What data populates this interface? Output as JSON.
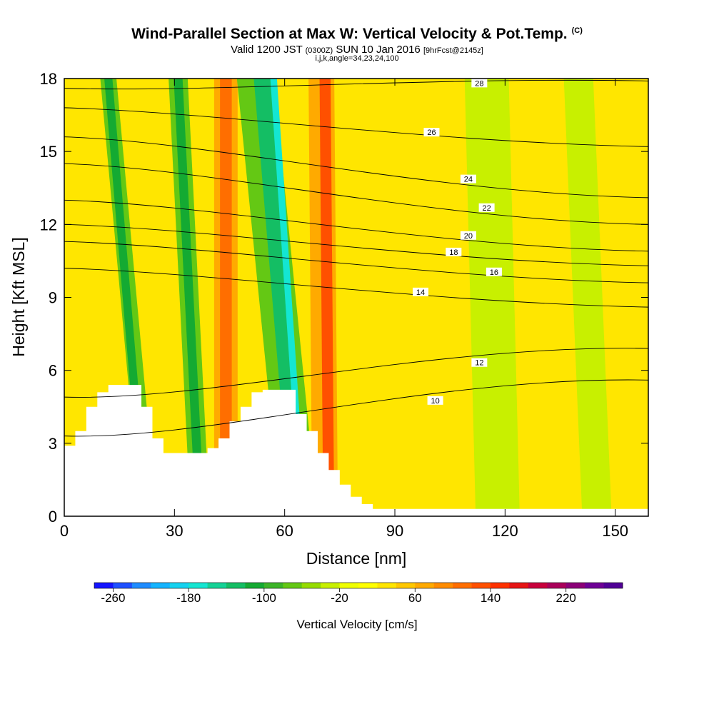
{
  "title": "Wind-Parallel Section at Max W: Vertical Velocity & Pot.Temp.",
  "copyright_mark": "(C)",
  "subtitle_main": "Valid 1200 JST",
  "subtitle_utc": "(0300Z)",
  "subtitle_date": "SUN 10 Jan 2016",
  "subtitle_fcst": "[9hrFcst@2145z]",
  "subsubtitle": "i,j,k,angle=34,23,24,100",
  "chart_data": {
    "type": "heatmap",
    "xlabel": "Distance [nm]",
    "ylabel": "Height [Kft MSL]",
    "xlim": [
      0,
      159
    ],
    "ylim": [
      0,
      18
    ],
    "xticks": [
      0,
      30,
      60,
      90,
      120,
      150
    ],
    "yticks": [
      0,
      3,
      6,
      9,
      12,
      15,
      18
    ],
    "colorbar": {
      "label": "Vertical Velocity [cm/s]",
      "tick_labels": [
        "-260",
        "-180",
        "-100",
        "-20",
        "60",
        "140",
        "220"
      ],
      "colors": [
        "#1414ff",
        "#1e50ff",
        "#1e8cff",
        "#14b4ff",
        "#14d2f0",
        "#14e6d2",
        "#14d296",
        "#14be64",
        "#14aa32",
        "#3cb428",
        "#64c814",
        "#96dc00",
        "#c8f000",
        "#f0ff00",
        "#ffff00",
        "#ffe600",
        "#ffc800",
        "#ffaa00",
        "#ff8c00",
        "#ff6e00",
        "#ff5000",
        "#ff3200",
        "#e61414",
        "#c8003c",
        "#aa005a",
        "#8c0078",
        "#6e0096",
        "#500096"
      ]
    },
    "streaks": [
      {
        "value": -70,
        "x_bottom": 23,
        "x_top": 12,
        "half_width": 2.2
      },
      {
        "value": -110,
        "x_bottom": 22,
        "x_top": 12,
        "half_width": 1.1
      },
      {
        "value": -70,
        "x_bottom": 37,
        "x_top": 31,
        "half_width": 2.6
      },
      {
        "value": -110,
        "x_bottom": 37,
        "x_top": 31,
        "half_width": 1.2
      },
      {
        "value": 60,
        "x_bottom": 44,
        "x_top": 44,
        "half_width": 3.2
      },
      {
        "value": 100,
        "x_bottom": 44,
        "x_top": 44,
        "half_width": 1.6
      },
      {
        "value": -70,
        "x_bottom": 64,
        "x_top": 52,
        "half_width": 5
      },
      {
        "value": -130,
        "x_bottom": 64,
        "x_top": 54,
        "half_width": 2.4
      },
      {
        "value": -180,
        "x_bottom": 65,
        "x_top": 57,
        "half_width": 0.9
      },
      {
        "value": 70,
        "x_bottom": 71,
        "x_top": 70,
        "half_width": 3.5
      },
      {
        "value": 120,
        "x_bottom": 72,
        "x_top": 71,
        "half_width": 1.5
      },
      {
        "value": -40,
        "x_bottom": 118,
        "x_top": 115,
        "half_width": 6
      },
      {
        "value": -30,
        "x_bottom": 145,
        "x_top": 140,
        "half_width": 4
      }
    ],
    "theta_contours": [
      {
        "value": 10,
        "height_left": 3.3,
        "height_right": 5.6,
        "label_x": 101
      },
      {
        "value": 12,
        "height_left": 4.9,
        "height_right": 6.9,
        "label_x": 113
      },
      {
        "value": 14,
        "height_left": 10.2,
        "height_right": 8.6,
        "label_x": 97
      },
      {
        "value": 16,
        "height_left": 11.3,
        "height_right": 9.6,
        "label_x": 117
      },
      {
        "value": 18,
        "height_left": 12.0,
        "height_right": 10.3,
        "label_x": 106
      },
      {
        "value": 20,
        "height_left": 13.0,
        "height_right": 10.9,
        "label_x": 110
      },
      {
        "value": 22,
        "height_left": 14.5,
        "height_right": 12.0,
        "label_x": 115
      },
      {
        "value": 24,
        "height_left": 15.6,
        "height_right": 13.1,
        "label_x": 110
      },
      {
        "value": 26,
        "height_left": 16.8,
        "height_right": 15.2,
        "label_x": 100
      },
      {
        "value": 28,
        "height_left": 17.6,
        "height_right": 17.9,
        "label_x": 113
      }
    ],
    "terrain_nm": [
      [
        0,
        2.9
      ],
      [
        3,
        3.5
      ],
      [
        6,
        4.5
      ],
      [
        9,
        5.1
      ],
      [
        12,
        5.4
      ],
      [
        21,
        4.5
      ],
      [
        24,
        3.2
      ],
      [
        27,
        2.6
      ],
      [
        39,
        2.8
      ],
      [
        42,
        3.2
      ],
      [
        45,
        3.9
      ],
      [
        48,
        4.5
      ],
      [
        51,
        5.1
      ],
      [
        54,
        5.2
      ],
      [
        63,
        4.2
      ],
      [
        66,
        3.5
      ],
      [
        69,
        2.6
      ],
      [
        72,
        1.9
      ],
      [
        75,
        1.3
      ],
      [
        78,
        0.8
      ],
      [
        81,
        0.5
      ],
      [
        84,
        0.3
      ],
      [
        159,
        0.3
      ]
    ]
  }
}
